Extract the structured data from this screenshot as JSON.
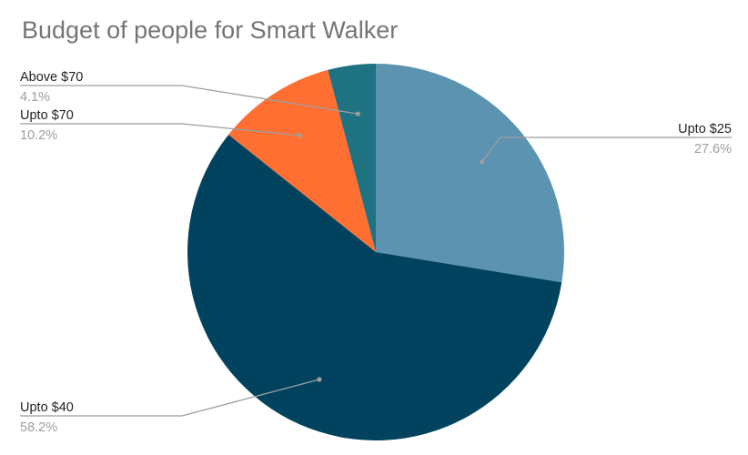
{
  "chart_data": {
    "type": "pie",
    "title": "Budget of people for Smart Walker",
    "slices": [
      {
        "label": "Upto $25",
        "value": 27.6,
        "percent_label": "27.6%",
        "color": "#5b93b0"
      },
      {
        "label": "Upto $40",
        "value": 58.2,
        "percent_label": "58.2%",
        "color": "#01435f"
      },
      {
        "label": "Upto $70",
        "value": 10.2,
        "percent_label": "10.2%",
        "color": "#ff6f32"
      },
      {
        "label": "Above $70",
        "value": 4.1,
        "percent_label": "4.1%",
        "color": "#1e7282"
      }
    ],
    "start": "12 o'clock",
    "direction": "clockwise",
    "legend": "none",
    "label_style": "callout"
  }
}
